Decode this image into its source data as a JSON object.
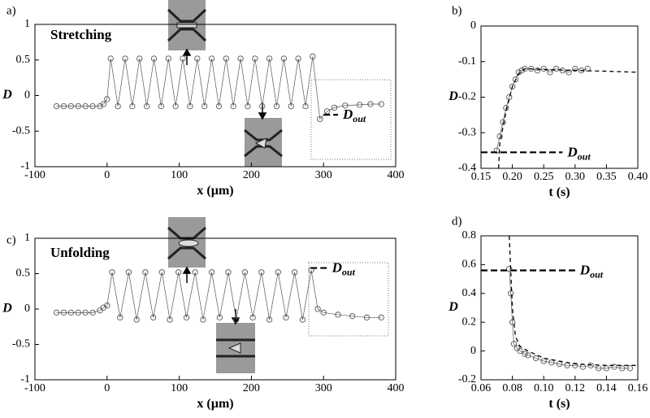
{
  "chart_data": [
    {
      "type": "line",
      "label": "a)",
      "annotation": "Stretching",
      "xlabel": "x (µm)",
      "ylabel": "D",
      "xlim": [
        -100,
        400
      ],
      "ylim": [
        -1,
        1
      ],
      "xticks": [
        -100,
        0,
        100,
        200,
        300,
        400
      ],
      "yticks": [
        -1,
        -0.5,
        0,
        0.5,
        1
      ],
      "x": [
        -70,
        -60,
        -50,
        -40,
        -30,
        -20,
        -10,
        -5,
        0,
        5,
        15,
        25,
        35,
        45,
        55,
        65,
        75,
        85,
        95,
        105,
        115,
        125,
        135,
        145,
        155,
        165,
        175,
        185,
        195,
        205,
        215,
        225,
        235,
        245,
        255,
        265,
        275,
        285,
        295,
        305,
        315,
        330,
        350,
        365,
        380
      ],
      "series": [
        {
          "color": "#555555",
          "values": [
            -0.15,
            -0.15,
            -0.15,
            -0.15,
            -0.15,
            -0.15,
            -0.15,
            -0.12,
            -0.05,
            0.52,
            -0.15,
            0.52,
            -0.15,
            0.52,
            -0.15,
            0.52,
            -0.15,
            0.52,
            -0.15,
            0.52,
            -0.15,
            0.52,
            -0.15,
            0.52,
            -0.15,
            0.52,
            -0.15,
            0.52,
            -0.15,
            0.52,
            -0.15,
            0.52,
            -0.15,
            0.52,
            -0.15,
            0.52,
            -0.15,
            0.55,
            -0.33,
            -0.22,
            -0.17,
            -0.14,
            -0.13,
            -0.12,
            -0.12
          ]
        }
      ],
      "reference": {
        "label": "D",
        "subscript": "out",
        "y": -0.27,
        "x": [
          300,
          320
        ]
      }
    },
    {
      "type": "line",
      "label": "b)",
      "xlabel": "t (s)",
      "ylabel": "D",
      "xlim": [
        0.15,
        0.4
      ],
      "ylim": [
        -0.4,
        0
      ],
      "xticks": [
        0.15,
        {
          "value": 0.2,
          "label": "0.20"
        },
        0.25,
        {
          "value": 0.3,
          "label": "0.30"
        },
        0.35,
        {
          "value": 0.4,
          "label": "0.40"
        }
      ],
      "yticks": [
        -0.4,
        -0.3,
        -0.2,
        -0.1,
        0
      ],
      "x": [
        0.175,
        0.18,
        0.185,
        0.19,
        0.195,
        0.2,
        0.205,
        0.21,
        0.215,
        0.22,
        0.23,
        0.24,
        0.25,
        0.26,
        0.27,
        0.28,
        0.29,
        0.3,
        0.31,
        0.32
      ],
      "series": [
        {
          "color": "#555555",
          "values": [
            -0.35,
            -0.31,
            -0.27,
            -0.23,
            -0.2,
            -0.17,
            -0.15,
            -0.13,
            -0.125,
            -0.12,
            -0.12,
            -0.125,
            -0.12,
            -0.13,
            -0.12,
            -0.125,
            -0.13,
            -0.12,
            -0.125,
            -0.12
          ]
        }
      ],
      "fit": {
        "x": [
          0.178,
          0.18,
          0.19,
          0.2,
          0.21,
          0.22,
          0.25,
          0.3,
          0.35,
          0.4
        ],
        "values": [
          -0.4,
          -0.33,
          -0.24,
          -0.17,
          -0.135,
          -0.12,
          -0.122,
          -0.125,
          -0.127,
          -0.13
        ]
      },
      "reference": {
        "label": "D",
        "subscript": "out",
        "y": -0.355,
        "x": [
          0.15,
          0.28
        ]
      }
    },
    {
      "type": "line",
      "label": "c)",
      "annotation": "Unfolding",
      "xlabel": "x (µm)",
      "ylabel": "D",
      "xlim": [
        -100,
        400
      ],
      "ylim": [
        -1,
        1
      ],
      "xticks": [
        -100,
        0,
        100,
        200,
        300,
        400
      ],
      "yticks": [
        -1,
        -0.5,
        0,
        0.5,
        1
      ],
      "x": [
        -70,
        -60,
        -50,
        -40,
        -30,
        -20,
        -10,
        -5,
        0,
        7,
        18,
        30,
        41,
        53,
        64,
        76,
        87,
        99,
        110,
        122,
        133,
        145,
        156,
        168,
        179,
        191,
        202,
        214,
        225,
        237,
        248,
        260,
        271,
        283,
        292,
        300,
        320,
        340,
        360,
        380
      ],
      "series": [
        {
          "color": "#555555",
          "values": [
            -0.05,
            -0.05,
            -0.05,
            -0.05,
            -0.05,
            -0.05,
            -0.02,
            0.02,
            0.05,
            0.52,
            -0.12,
            0.52,
            -0.15,
            0.52,
            -0.12,
            0.52,
            -0.15,
            0.52,
            -0.12,
            0.52,
            -0.15,
            0.52,
            -0.12,
            0.52,
            -0.15,
            0.52,
            -0.12,
            0.52,
            -0.15,
            0.52,
            -0.12,
            0.52,
            -0.15,
            0.55,
            0,
            -0.05,
            -0.08,
            -0.1,
            -0.12,
            -0.12
          ]
        }
      ],
      "reference": {
        "label": "D",
        "subscript": "out",
        "y": 0.58,
        "x": [
          282,
          305
        ]
      }
    },
    {
      "type": "line",
      "label": "d)",
      "xlabel": "t (s)",
      "ylabel": "D",
      "xlim": [
        0.06,
        0.16
      ],
      "ylim": [
        -0.2,
        0.8
      ],
      "xticks": [
        0.06,
        0.08,
        {
          "value": 0.1,
          "label": "0.10"
        },
        0.12,
        0.14,
        0.16
      ],
      "yticks": [
        -0.2,
        0,
        0.2,
        0.4,
        0.6,
        0.8
      ],
      "x": [
        0.078,
        0.079,
        0.08,
        0.081,
        0.083,
        0.085,
        0.088,
        0.09,
        0.095,
        0.1,
        0.105,
        0.11,
        0.115,
        0.12,
        0.125,
        0.13,
        0.135,
        0.14,
        0.145,
        0.15,
        0.155
      ],
      "series": [
        {
          "color": "#555555",
          "values": [
            0.57,
            0.4,
            0.2,
            0.05,
            0.02,
            0.0,
            -0.02,
            -0.03,
            -0.05,
            -0.07,
            -0.08,
            -0.09,
            -0.1,
            -0.1,
            -0.11,
            -0.1,
            -0.12,
            -0.12,
            -0.11,
            -0.12,
            -0.12
          ]
        }
      ],
      "fit": {
        "x": [
          0.078,
          0.08,
          0.082,
          0.085,
          0.09,
          0.1,
          0.12,
          0.14,
          0.16
        ],
        "values": [
          0.8,
          0.3,
          0.1,
          0.03,
          0.0,
          -0.05,
          -0.09,
          -0.1,
          -0.1
        ]
      },
      "reference": {
        "label": "D",
        "subscript": "out",
        "y": 0.56,
        "x": [
          0.06,
          0.12
        ]
      }
    }
  ]
}
